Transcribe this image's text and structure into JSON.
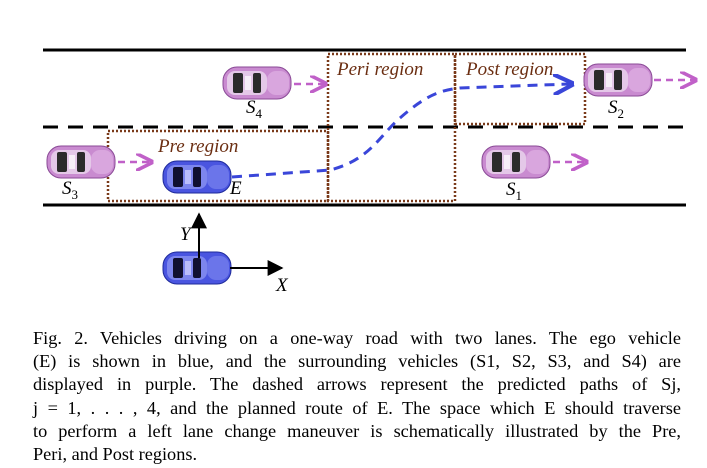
{
  "regions": {
    "pre": "Pre region",
    "peri": "Peri region",
    "post": "Post region"
  },
  "vehicles": {
    "ego": {
      "label": "E",
      "color": "#3a46d9"
    },
    "s1": {
      "label": "S",
      "sub": "1",
      "color": "#c060c8"
    },
    "s2": {
      "label": "S",
      "sub": "2",
      "color": "#c060c8"
    },
    "s3": {
      "label": "S",
      "sub": "3",
      "color": "#c060c8"
    },
    "s4": {
      "label": "S",
      "sub": "4",
      "color": "#c060c8"
    }
  },
  "axes": {
    "x": "X",
    "y": "Y"
  },
  "colors": {
    "ego": "#3a46d9",
    "surrounding": "#c060c8",
    "region_border": "#7a3a1a",
    "road": "#000000"
  },
  "caption": {
    "lines": [
      "Fig. 2.  Vehicles driving on a one-way road with two lanes. The ego vehicle",
      "(E) is shown in blue, and the surrounding vehicles (S1, S2, S3, and S4) are",
      "displayed in purple. The dashed arrows represent the predicted paths of Sj,",
      "j = 1, . . . , 4, and the planned route of E. The space which E should traverse",
      "to perform a left lane change maneuver is schematically illustrated by the Pre,",
      "Peri, and Post regions."
    ]
  }
}
